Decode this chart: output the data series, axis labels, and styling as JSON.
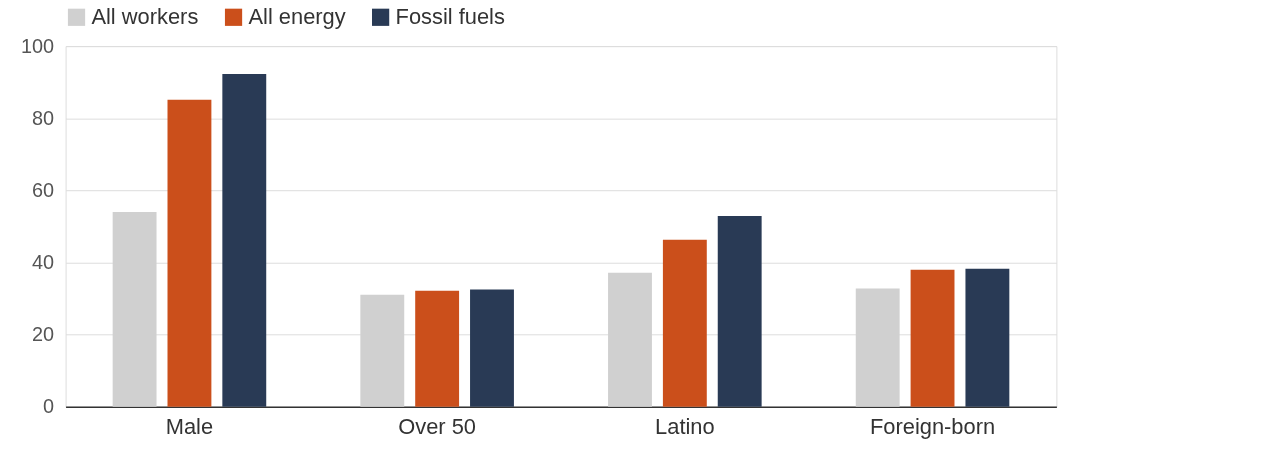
{
  "chart_data": {
    "type": "bar",
    "categories": [
      "Male",
      "Over 50",
      "Latino",
      "Foreign-born"
    ],
    "series": [
      {
        "name": "All workers",
        "color": "#d0d0d0",
        "values": [
          54.0,
          31.1,
          37.2,
          32.8
        ]
      },
      {
        "name": "All energy",
        "color": "#cb4f1b",
        "values": [
          85.1,
          32.2,
          46.3,
          38.0
        ]
      },
      {
        "name": "Fossil fuels",
        "color": "#293a55",
        "values": [
          92.3,
          32.5,
          52.9,
          38.3
        ]
      }
    ],
    "ylim": [
      0,
      100
    ],
    "yticks": [
      0,
      20,
      40,
      60,
      80,
      100
    ],
    "grid": "y",
    "legend": "top"
  }
}
